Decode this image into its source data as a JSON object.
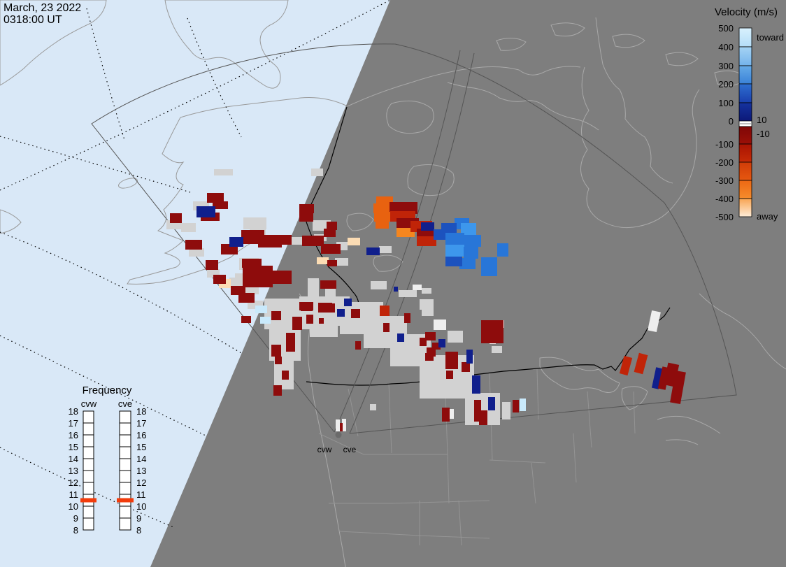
{
  "datetime": {
    "line1": "March, 23 2022",
    "line2": "0318:00 UT"
  },
  "velocity_legend": {
    "title": "Velocity (m/s)",
    "toward": "toward",
    "away": "away",
    "zero_upper": "10",
    "zero_lower": "-10",
    "upper_tick_labels": [
      "500",
      "400",
      "300",
      "200",
      "100",
      "0"
    ],
    "lower_tick_labels": [
      "-100",
      "-200",
      "-300",
      "-400",
      "-500"
    ],
    "upper_segment_colors": [
      [
        "#D9F1FD",
        "#B4DDF8"
      ],
      [
        "#A5D3F4",
        "#74B3EB"
      ],
      [
        "#66ABE7",
        "#3A82D8"
      ],
      [
        "#2E6FD0",
        "#1A3FAE"
      ],
      [
        "#15339F",
        "#0C1878"
      ]
    ],
    "zero_band_color": "#FFFFFF",
    "lower_segment_colors": [
      [
        "#7F0707",
        "#9C1007"
      ],
      [
        "#A91403",
        "#C62B06"
      ],
      [
        "#D03C08",
        "#E65810"
      ],
      [
        "#EC6814",
        "#F58C2C"
      ],
      [
        "#F8A452",
        "#FEEDD8"
      ]
    ]
  },
  "frequency_panel": {
    "title": "Frequency",
    "tick_labels": [
      "18",
      "17",
      "16",
      "15",
      "14",
      "13",
      "12",
      "11",
      "10",
      "9",
      "8"
    ],
    "marker_color": "#F23C0C",
    "columns": [
      {
        "label": "cvw",
        "marker_value_mhz": 10.5
      },
      {
        "label": "cve",
        "marker_value_mhz": 10.5
      }
    ]
  },
  "radar_sites": {
    "west_label": "cvw",
    "east_label": "cve"
  },
  "map": {
    "colors": {
      "day_sea": "#D9E8F7",
      "day_land": "#FCF8E0",
      "day_coast": "#999999",
      "night_ground": "#7E7E7E",
      "night_coast": "#A9A9A9",
      "state_lines": "#949494",
      "borders": "#000000",
      "fov_lines": "#555555"
    },
    "palette": {
      "dr": "#8E0C0C",
      "r": "#C02408",
      "o": "#E86210",
      "ob": "#F5861F",
      "cr": "#FBDCB4",
      "nv": "#101F8C",
      "mb": "#1C52BE",
      "b": "#2876D8",
      "bb": "#3D97EC",
      "lb": "#C9E9FB",
      "gs": "#D2D2D2",
      "w": "#EEEEEE"
    },
    "cells": [
      [
        378,
        427,
        68,
        44,
        "gs"
      ],
      [
        428,
        424,
        72,
        42,
        "gs"
      ],
      [
        486,
        432,
        62,
        46,
        "gs"
      ],
      [
        520,
        452,
        62,
        46,
        "gs"
      ],
      [
        558,
        478,
        58,
        46,
        "gs"
      ],
      [
        600,
        508,
        78,
        62,
        "gs"
      ],
      [
        385,
        468,
        45,
        48,
        "gs"
      ],
      [
        392,
        515,
        28,
        42,
        "gs"
      ],
      [
        443,
        447,
        40,
        35,
        "gs"
      ],
      [
        665,
        562,
        50,
        46,
        "gs"
      ],
      [
        306,
        242,
        27,
        9,
        "gs"
      ],
      [
        276,
        288,
        23,
        13,
        "gs"
      ],
      [
        238,
        315,
        21,
        13,
        "gs"
      ],
      [
        259,
        319,
        21,
        13,
        "gs"
      ],
      [
        270,
        355,
        22,
        12,
        "gs"
      ],
      [
        296,
        385,
        18,
        12,
        "gs"
      ],
      [
        328,
        397,
        19,
        12,
        "gs"
      ],
      [
        348,
        408,
        22,
        13,
        "gs"
      ],
      [
        354,
        430,
        22,
        12,
        "gs"
      ],
      [
        348,
        311,
        33,
        17,
        "gs"
      ],
      [
        357,
        325,
        23,
        14,
        "gs"
      ],
      [
        416,
        339,
        17,
        11,
        "gs"
      ],
      [
        481,
        346,
        16,
        12,
        "gs"
      ],
      [
        342,
        369,
        28,
        17,
        "gs"
      ],
      [
        336,
        391,
        14,
        15,
        "gs"
      ],
      [
        445,
        241,
        17,
        11,
        "gs"
      ],
      [
        447,
        315,
        26,
        15,
        "gs"
      ],
      [
        449,
        335,
        18,
        10,
        "gs"
      ],
      [
        542,
        352,
        18,
        10,
        "gs"
      ],
      [
        479,
        369,
        19,
        11,
        "gs"
      ],
      [
        440,
        398,
        16,
        27,
        "gs"
      ],
      [
        465,
        413,
        15,
        12,
        "gs"
      ],
      [
        530,
        402,
        23,
        12,
        "gs"
      ],
      [
        570,
        415,
        26,
        10,
        "gs"
      ],
      [
        603,
        412,
        14,
        8,
        "gs"
      ],
      [
        600,
        428,
        20,
        15,
        "gs"
      ],
      [
        603,
        440,
        17,
        12,
        "gs"
      ],
      [
        640,
        473,
        22,
        17,
        "gs"
      ],
      [
        703,
        495,
        15,
        10,
        "gs"
      ],
      [
        718,
        575,
        12,
        25,
        "gs"
      ],
      [
        529,
        578,
        9,
        9,
        "gs"
      ],
      [
        396,
        520,
        14,
        11,
        "gs"
      ],
      [
        400,
        541,
        13,
        12,
        "gs"
      ],
      [
        590,
        407,
        13,
        8,
        "w"
      ],
      [
        620,
        457,
        18,
        15,
        "w"
      ],
      [
        705,
        458,
        16,
        11,
        "w"
      ],
      [
        700,
        478,
        9,
        14,
        "w"
      ],
      [
        640,
        585,
        9,
        14,
        "w"
      ],
      [
        929,
        445,
        13,
        29,
        "w",
        12
      ],
      [
        313,
        399,
        17,
        13,
        "cr"
      ],
      [
        497,
        340,
        18,
        11,
        "cr"
      ],
      [
        453,
        368,
        17,
        10,
        "cr"
      ],
      [
        365,
        437,
        17,
        11,
        "lb"
      ],
      [
        372,
        453,
        15,
        10,
        "lb"
      ],
      [
        743,
        570,
        9,
        18,
        "lb"
      ],
      [
        296,
        276,
        24,
        14,
        "dr"
      ],
      [
        304,
        288,
        22,
        11,
        "dr"
      ],
      [
        287,
        304,
        27,
        12,
        "dr"
      ],
      [
        243,
        305,
        17,
        14,
        "dr"
      ],
      [
        265,
        343,
        24,
        14,
        "dr"
      ],
      [
        294,
        372,
        18,
        14,
        "dr"
      ],
      [
        305,
        393,
        18,
        13,
        "dr"
      ],
      [
        330,
        409,
        21,
        13,
        "dr"
      ],
      [
        341,
        419,
        23,
        14,
        "dr"
      ],
      [
        345,
        329,
        33,
        20,
        "dr"
      ],
      [
        316,
        349,
        24,
        15,
        "dr"
      ],
      [
        369,
        336,
        34,
        18,
        "dr"
      ],
      [
        382,
        336,
        35,
        14,
        "dr"
      ],
      [
        432,
        337,
        31,
        15,
        "dr"
      ],
      [
        459,
        349,
        28,
        14,
        "dr"
      ],
      [
        346,
        370,
        28,
        13,
        "dr"
      ],
      [
        347,
        380,
        43,
        31,
        "dr"
      ],
      [
        389,
        387,
        28,
        19,
        "dr"
      ],
      [
        281,
        295,
        27,
        16,
        "nv"
      ],
      [
        328,
        339,
        20,
        14,
        "nv"
      ],
      [
        428,
        292,
        21,
        13,
        "dr"
      ],
      [
        428,
        304,
        20,
        13,
        "dr"
      ],
      [
        467,
        317,
        15,
        12,
        "dr"
      ],
      [
        463,
        327,
        17,
        12,
        "dr"
      ],
      [
        468,
        372,
        14,
        9,
        "dr"
      ],
      [
        458,
        401,
        23,
        12,
        "dr"
      ],
      [
        345,
        452,
        14,
        10,
        "dr"
      ],
      [
        524,
        354,
        19,
        11,
        "nv"
      ],
      [
        388,
        445,
        14,
        13,
        "dr"
      ],
      [
        430,
        432,
        17,
        13,
        "dr"
      ],
      [
        455,
        433,
        20,
        14,
        "dr"
      ],
      [
        428,
        432,
        20,
        12,
        "dr"
      ],
      [
        457,
        434,
        22,
        13,
        "dr"
      ],
      [
        502,
        442,
        13,
        13,
        "dr"
      ],
      [
        438,
        450,
        10,
        13,
        "dr"
      ],
      [
        418,
        453,
        14,
        19,
        "dr"
      ],
      [
        456,
        455,
        7,
        8,
        "dr"
      ],
      [
        409,
        476,
        13,
        27,
        "dr"
      ],
      [
        388,
        493,
        14,
        17,
        "dr"
      ],
      [
        393,
        510,
        10,
        11,
        "dr"
      ],
      [
        403,
        530,
        10,
        13,
        "dr"
      ],
      [
        391,
        551,
        12,
        15,
        "dr"
      ],
      [
        548,
        462,
        9,
        13,
        "dr"
      ],
      [
        578,
        448,
        9,
        14,
        "dr"
      ],
      [
        508,
        488,
        8,
        12,
        "dr"
      ],
      [
        543,
        437,
        14,
        15,
        "r"
      ],
      [
        492,
        427,
        11,
        11,
        "nv"
      ],
      [
        482,
        442,
        11,
        11,
        "nv"
      ],
      [
        568,
        477,
        10,
        12,
        "nv"
      ],
      [
        563,
        410,
        6,
        7,
        "nv"
      ],
      [
        608,
        475,
        15,
        12,
        "dr"
      ],
      [
        600,
        483,
        10,
        12,
        "dr"
      ],
      [
        618,
        490,
        12,
        10,
        "dr"
      ],
      [
        610,
        497,
        13,
        13,
        "dr"
      ],
      [
        608,
        505,
        12,
        11,
        "dr"
      ],
      [
        637,
        503,
        18,
        25,
        "dr"
      ],
      [
        638,
        530,
        10,
        12,
        "dr"
      ],
      [
        660,
        518,
        12,
        14,
        "dr"
      ],
      [
        688,
        458,
        32,
        33,
        "dr"
      ],
      [
        678,
        572,
        10,
        31,
        "dr"
      ],
      [
        685,
        587,
        12,
        21,
        "dr"
      ],
      [
        632,
        583,
        11,
        20,
        "dr"
      ],
      [
        733,
        572,
        9,
        18,
        "dr"
      ],
      [
        627,
        485,
        10,
        12,
        "nv"
      ],
      [
        667,
        500,
        9,
        20,
        "nv"
      ],
      [
        675,
        537,
        12,
        26,
        "nv"
      ],
      [
        698,
        568,
        10,
        19,
        "nv"
      ],
      [
        538,
        281,
        24,
        13,
        "o"
      ],
      [
        534,
        291,
        25,
        14,
        "o"
      ],
      [
        557,
        289,
        40,
        17,
        "dr"
      ],
      [
        535,
        303,
        23,
        14,
        "o"
      ],
      [
        558,
        302,
        36,
        15,
        "r"
      ],
      [
        537,
        314,
        19,
        13,
        "o"
      ],
      [
        567,
        312,
        32,
        18,
        "dr"
      ],
      [
        567,
        326,
        26,
        13,
        "ob"
      ],
      [
        587,
        316,
        31,
        16,
        "r"
      ],
      [
        596,
        327,
        25,
        15,
        "dr"
      ],
      [
        596,
        338,
        28,
        14,
        "r"
      ],
      [
        602,
        318,
        19,
        12,
        "nv"
      ],
      [
        650,
        312,
        21,
        16,
        "b"
      ],
      [
        631,
        319,
        22,
        16,
        "mb"
      ],
      [
        659,
        319,
        22,
        18,
        "bb"
      ],
      [
        620,
        328,
        21,
        15,
        "mb"
      ],
      [
        637,
        333,
        27,
        17,
        "b"
      ],
      [
        663,
        336,
        25,
        17,
        "b"
      ],
      [
        637,
        350,
        27,
        17,
        "bb"
      ],
      [
        663,
        353,
        21,
        17,
        "b"
      ],
      [
        643,
        352,
        16,
        28,
        "bb"
      ],
      [
        657,
        369,
        23,
        16,
        "b"
      ],
      [
        637,
        367,
        24,
        14,
        "mb"
      ],
      [
        688,
        368,
        23,
        27,
        "b"
      ],
      [
        711,
        348,
        16,
        19,
        "b"
      ],
      [
        889,
        510,
        12,
        26,
        "r",
        15
      ],
      [
        910,
        506,
        13,
        28,
        "r",
        15
      ],
      [
        935,
        526,
        10,
        30,
        "nv",
        12
      ],
      [
        944,
        525,
        11,
        32,
        "dr",
        12
      ],
      [
        952,
        520,
        16,
        32,
        "dr",
        12
      ],
      [
        962,
        531,
        15,
        46,
        "dr",
        10
      ],
      [
        480,
        600,
        6,
        17,
        "w"
      ],
      [
        489,
        599,
        6,
        18,
        "w"
      ],
      [
        486,
        605,
        4,
        12,
        "dr"
      ]
    ]
  }
}
